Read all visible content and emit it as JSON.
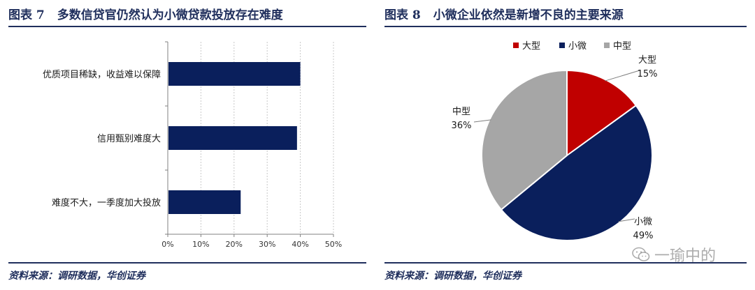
{
  "left": {
    "fig_no": "图表 7",
    "title": "多数信贷官仍然认为小微贷款投放存在难度",
    "source": "资料来源：调研数据，华创证券"
  },
  "right": {
    "fig_no": "图表 8",
    "title": "小微企业依然是新增不良的主要来源",
    "source": "资料来源：调研数据，华创证券"
  },
  "watermark": {
    "text": "一瑜中的",
    "icon": "wechat-icon"
  },
  "chart_data": [
    {
      "type": "bar",
      "orientation": "horizontal",
      "categories": [
        "优质项目稀缺，收益难以保障",
        "信用甄别难度大",
        "难度不大，一季度加大投放"
      ],
      "values": [
        40,
        39,
        22
      ],
      "xlim": [
        0,
        50
      ],
      "xticks": [
        "0%",
        "10%",
        "20%",
        "30%",
        "40%",
        "50%"
      ],
      "grid": true,
      "color": "#0a1f5c"
    },
    {
      "type": "pie",
      "legend": [
        "大型",
        "小微",
        "中型"
      ],
      "legend_position": "top",
      "slices": [
        {
          "name": "大型",
          "value": 15,
          "label": "15%",
          "color": "#c00000"
        },
        {
          "name": "小微",
          "value": 49,
          "label": "49%",
          "color": "#0a1f5c"
        },
        {
          "name": "中型",
          "value": 36,
          "label": "36%",
          "color": "#a6a6a6"
        }
      ]
    }
  ]
}
